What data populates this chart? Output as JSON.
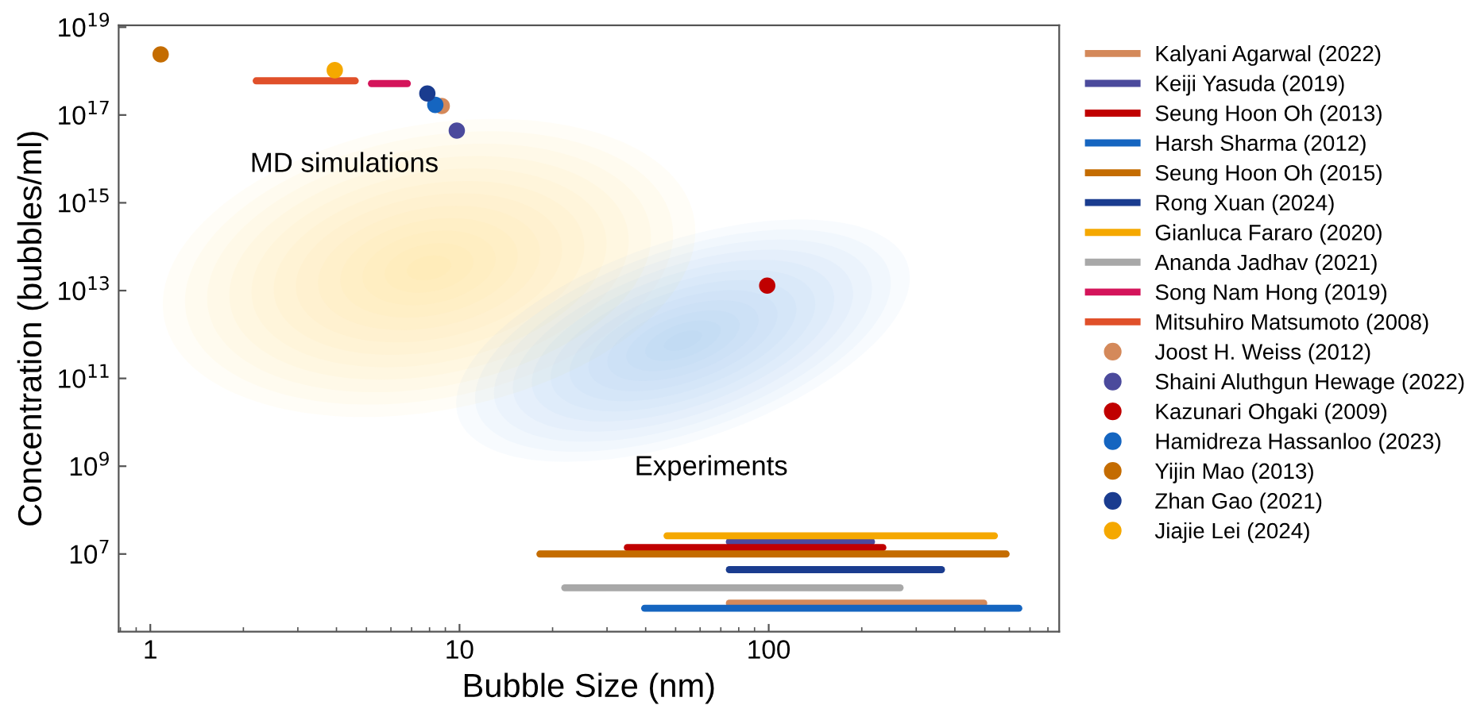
{
  "chart_data": {
    "type": "line",
    "xlabel": "Bubble Size (nm)",
    "ylabel": "Concentration (bubbles/ml)",
    "log": "xy",
    "grid": false,
    "legend": "right",
    "marker": "none",
    "xlim": [
      0.79,
      870
    ],
    "ylim": [
      170000.0,
      1.1e+19
    ],
    "xticks": [
      1,
      10,
      100
    ],
    "yticks": [
      {
        "value": 10000000.0,
        "label": "10$^{7}$"
      },
      {
        "value": 1000000000.0,
        "label": "10$^{9}$"
      },
      {
        "value": 100000000000.0,
        "label": "10$^{11}$"
      },
      {
        "value": 10000000000000.0,
        "label": "10$^{13}$"
      },
      {
        "value": 1000000000000000.0,
        "label": "10$^{15}$"
      },
      {
        "value": 1e+17,
        "label": "10$^{17}$"
      },
      {
        "value": 1e+19,
        "label": "10$^{19}$"
      }
    ],
    "annotations": [
      "MD simulations",
      "Experiments"
    ],
    "series": [
      {
        "name": "Kalyani Agarwal (2022)",
        "color": "#d4895a",
        "x": [
          74.6,
          496
        ],
        "values": [
          760000.0,
          760000.0
        ]
      },
      {
        "name": "Keiji Yasuda (2019)",
        "color": "#4b4a9c",
        "x": [
          74.6,
          215
        ],
        "values": [
          19000000.0,
          19000000.0
        ]
      },
      {
        "name": "Seung Hoon Oh (2013)",
        "color": "#c00000",
        "x": [
          34.9,
          234
        ],
        "values": [
          14000000.0,
          14000000.0
        ]
      },
      {
        "name": "Harsh Sharma (2012)",
        "color": "#1565c0",
        "x": [
          39.7,
          644
        ],
        "values": [
          580000.0,
          580000.0
        ]
      },
      {
        "name": "Seung Hoon Oh (2015)",
        "color": "#c46c00",
        "x": [
          18.2,
          586
        ],
        "values": [
          10000000.0,
          10000000.0
        ]
      },
      {
        "name": "Rong Xuan (2024)",
        "color": "#1a3c8f",
        "x": [
          74.6,
          362
        ],
        "values": [
          4400000.0,
          4400000.0
        ]
      },
      {
        "name": "Gianluca Fararo (2020)",
        "color": "#f5a800",
        "x": [
          46.9,
          537
        ],
        "values": [
          26000000.0,
          26000000.0
        ]
      },
      {
        "name": "Ananda Jadhav (2021)",
        "color": "#a8a8a8",
        "x": [
          21.9,
          266
        ],
        "values": [
          1700000.0,
          1700000.0
        ]
      },
      {
        "name": "Song Nam Hong (2019)",
        "color": "#d4145a",
        "x": [
          5.19,
          6.78
        ],
        "values": [
          5.2e+17,
          5.2e+17
        ]
      },
      {
        "name": "Mitsuhiro Matsumoto (2008)",
        "color": "#e0502a",
        "x": [
          2.2,
          4.6
        ],
        "values": [
          6e+17,
          6e+17
        ]
      },
      {
        "name": "Joost H. Weiss (2012)",
        "type": "scatter",
        "marker": "circle",
        "color": "#d4895a",
        "x": [
          8.76
        ],
        "values": [
          1.6e+17
        ]
      },
      {
        "name": "Shaini Aluthgun Hewage (2022)",
        "type": "scatter",
        "marker": "circle",
        "color": "#4b4a9c",
        "x": [
          9.8
        ],
        "values": [
          4.4e+16
        ]
      },
      {
        "name": "Kazunari Ohgaki (2009)",
        "type": "scatter",
        "marker": "circle",
        "color": "#c00000",
        "x": [
          98.9
        ],
        "values": [
          13000000000000.0
        ]
      },
      {
        "name": "Hamidreza Hassanloo (2023)",
        "type": "scatter",
        "marker": "circle",
        "color": "#1565c0",
        "x": [
          8.35
        ],
        "values": [
          1.7e+17
        ]
      },
      {
        "name": "Yijin Mao (2013)",
        "type": "scatter",
        "marker": "circle",
        "color": "#c46c00",
        "x": [
          1.08
        ],
        "values": [
          2.4e+18
        ]
      },
      {
        "name": "Zhan Gao (2021)",
        "type": "scatter",
        "marker": "circle",
        "color": "#1a3c8f",
        "x": [
          7.87
        ],
        "values": [
          3.1e+17
        ]
      },
      {
        "name": "Jiajie Lei (2024)",
        "type": "scatter",
        "marker": "circle",
        "color": "#f5a800",
        "x": [
          3.95
        ],
        "values": [
          1.05e+18
        ]
      }
    ]
  }
}
